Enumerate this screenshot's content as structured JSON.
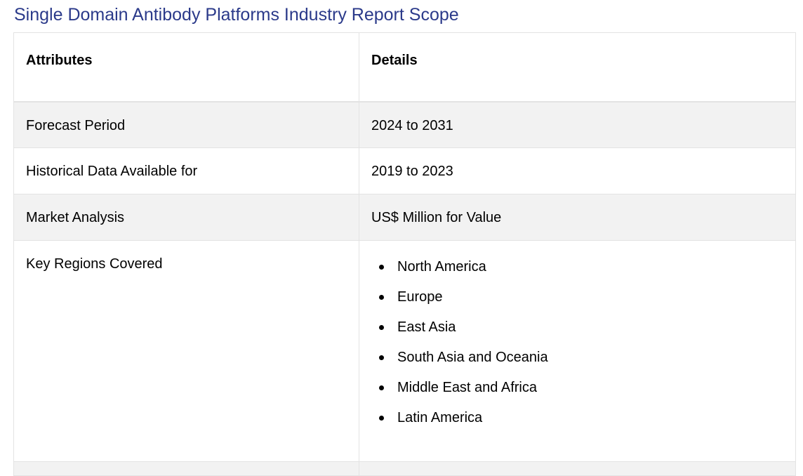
{
  "title": "Single Domain Antibody Platforms Industry Report Scope",
  "table": {
    "headers": [
      "Attributes",
      "Details"
    ],
    "rows": [
      {
        "attribute": "Forecast Period",
        "detail": "2024 to 2031"
      },
      {
        "attribute": "Historical Data Available for",
        "detail": "2019 to 2023"
      },
      {
        "attribute": "Market Analysis",
        "detail": "US$ Million for Value"
      }
    ],
    "regions": {
      "attribute": "Key Regions Covered",
      "items": [
        "North America",
        "Europe",
        "East Asia",
        "South Asia and Oceania",
        "Middle East and Africa",
        "Latin America"
      ]
    }
  },
  "colors": {
    "title": "#2b3a8a",
    "row_shade": "#f2f2f2",
    "border": "#e3e3e3"
  }
}
